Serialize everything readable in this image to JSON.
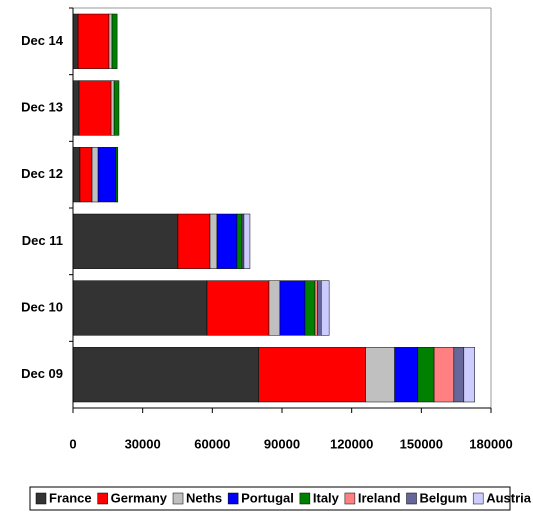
{
  "chart_data": {
    "type": "stacked-bar-horizontal",
    "categories": [
      "Dec 14",
      "Dec 13",
      "Dec 12",
      "Dec 11",
      "Dec 10",
      "Dec 09"
    ],
    "series": [
      {
        "name": "France",
        "color": "#333333",
        "values": [
          2200,
          2600,
          3000,
          45200,
          57700,
          80000
        ]
      },
      {
        "name": "Germany",
        "color": "#ff0000",
        "values": [
          13300,
          13800,
          5200,
          13800,
          26700,
          46000
        ]
      },
      {
        "name": "Neths",
        "color": "#c0c0c0",
        "values": [
          1300,
          1300,
          2600,
          3000,
          4700,
          12500
        ]
      },
      {
        "name": "Portugal",
        "color": "#0000ff",
        "values": [
          0,
          0,
          7700,
          8600,
          10800,
          10000
        ]
      },
      {
        "name": "Italy",
        "color": "#008000",
        "values": [
          2200,
          2100,
          800,
          2200,
          4300,
          7000
        ]
      },
      {
        "name": "Ireland",
        "color": "#ff8080",
        "values": [
          0,
          0,
          0,
          0,
          1000,
          8500
        ]
      },
      {
        "name": "Belgum",
        "color": "#666699",
        "values": [
          0,
          0,
          0,
          800,
          1700,
          4300
        ]
      },
      {
        "name": "Austria",
        "color": "#ccccff",
        "values": [
          0,
          0,
          0,
          2600,
          3400,
          4700
        ]
      }
    ],
    "xlim": [
      0,
      180000
    ],
    "xticks": [
      0,
      30000,
      60000,
      90000,
      120000,
      150000,
      180000
    ],
    "legend": "bottom"
  }
}
